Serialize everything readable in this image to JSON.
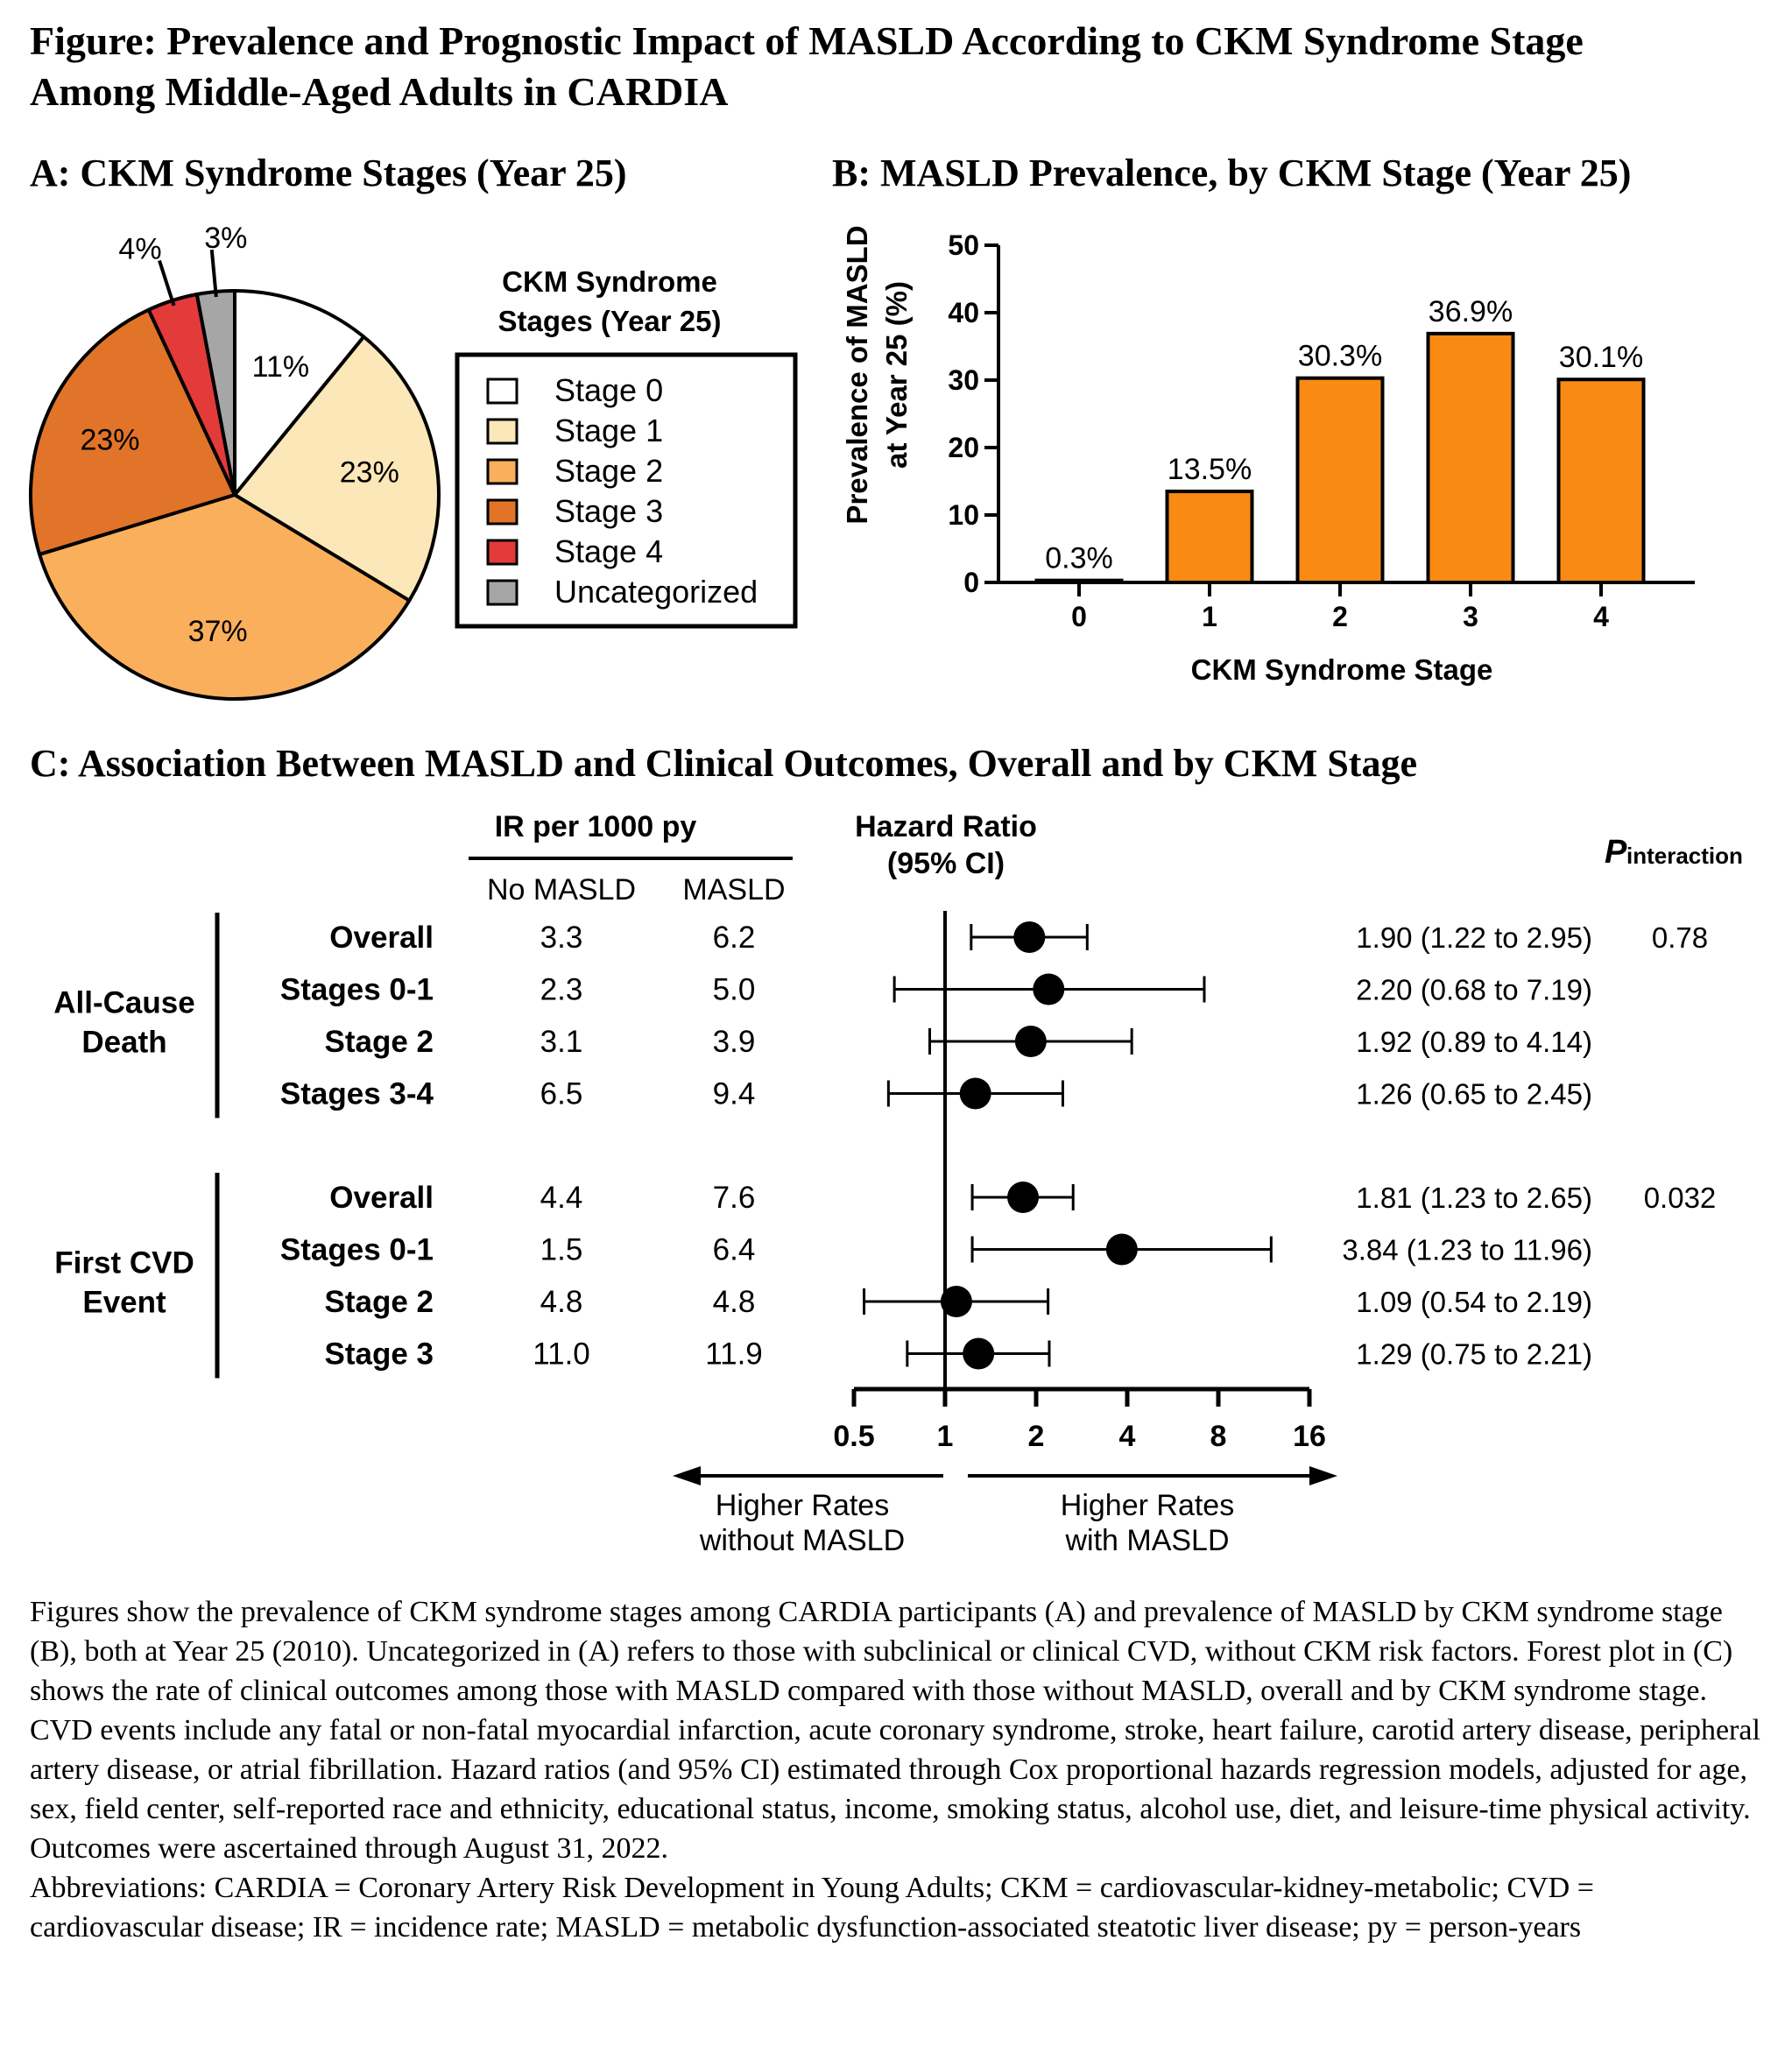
{
  "figure_title_line1": "Figure: Prevalence and Prognostic Impact of MASLD According to CKM Syndrome Stage",
  "figure_title_line2": "Among Middle-Aged Adults in CARDIA",
  "colors": {
    "stage0": "#ffffff",
    "stage1": "#fbe7b7",
    "stage2": "#f9af5c",
    "stage3": "#e17428",
    "stage4": "#e33a3a",
    "uncategorized": "#a6a6a6",
    "bar": "#f98a13"
  },
  "chart_data": [
    {
      "type": "pie",
      "title": "A: CKM Syndrome Stages (Year 25)",
      "legend_title_line1": "CKM Syndrome",
      "legend_title_line2": "Stages (Year 25)",
      "legend_position": "right",
      "slices": [
        {
          "label": "Stage 0",
          "value": 11,
          "text": "11%"
        },
        {
          "label": "Stage 1",
          "value": 23,
          "text": "23%"
        },
        {
          "label": "Stage 2",
          "value": 37,
          "text": "37%"
        },
        {
          "label": "Stage 3",
          "value": 23,
          "text": "23%"
        },
        {
          "label": "Stage 4",
          "value": 4,
          "text": "4%"
        },
        {
          "label": "Uncategorized",
          "value": 3,
          "text": "3%"
        }
      ]
    },
    {
      "type": "bar",
      "title": "B: MASLD Prevalence, by CKM Stage (Year 25)",
      "xlabel": "CKM Syndrome Stage",
      "ylabel_line1": "Prevalence of MASLD",
      "ylabel_line2": "at Year 25 (%)",
      "categories": [
        "0",
        "1",
        "2",
        "3",
        "4"
      ],
      "values": [
        0.3,
        13.5,
        30.3,
        36.9,
        30.1
      ],
      "value_labels": [
        "0.3%",
        "13.5%",
        "30.3%",
        "36.9%",
        "30.1%"
      ],
      "ylim": [
        0,
        50
      ],
      "yticks": [
        "0",
        "10",
        "20",
        "30",
        "40",
        "50"
      ]
    },
    {
      "type": "forest",
      "title": "C: Association Between MASLD and Clinical Outcomes, Overall and by CKM Stage",
      "ir_header": "IR per 1000 py",
      "col_no_masld": "No MASLD",
      "col_masld": "MASLD",
      "hr_header_line1": "Hazard Ratio",
      "hr_header_line2": "(95% CI)",
      "p_header_main": "P",
      "p_header_sub": "interaction",
      "x_scale": "log2",
      "xlim": [
        0.5,
        16
      ],
      "xticks": [
        "0.5",
        "1",
        "2",
        "4",
        "8",
        "16"
      ],
      "reference_line": 1,
      "arrow_left_line1": "Higher Rates",
      "arrow_left_line2": "without MASLD",
      "arrow_right_line1": "Higher Rates",
      "arrow_right_line2": "with MASLD",
      "groups": [
        {
          "name_line1": "All-Cause",
          "name_line2": "Death",
          "rows": [
            {
              "label": "Overall",
              "ir_no": "3.3",
              "ir_yes": "6.2",
              "hr": 1.9,
              "lo": 1.22,
              "hi": 2.95,
              "hr_text": "1.90 (1.22 to 2.95)",
              "p": "0.78"
            },
            {
              "label": "Stages 0-1",
              "ir_no": "2.3",
              "ir_yes": "5.0",
              "hr": 2.2,
              "lo": 0.68,
              "hi": 7.19,
              "hr_text": "2.20 (0.68 to 7.19)",
              "p": ""
            },
            {
              "label": "Stage 2",
              "ir_no": "3.1",
              "ir_yes": "3.9",
              "hr": 1.92,
              "lo": 0.89,
              "hi": 4.14,
              "hr_text": "1.92 (0.89 to 4.14)",
              "p": ""
            },
            {
              "label": "Stages 3-4",
              "ir_no": "6.5",
              "ir_yes": "9.4",
              "hr": 1.26,
              "lo": 0.65,
              "hi": 2.45,
              "hr_text": "1.26 (0.65 to 2.45)",
              "p": ""
            }
          ]
        },
        {
          "name_line1": "First CVD",
          "name_line2": "Event",
          "rows": [
            {
              "label": "Overall",
              "ir_no": "4.4",
              "ir_yes": "7.6",
              "hr": 1.81,
              "lo": 1.23,
              "hi": 2.65,
              "hr_text": "1.81 (1.23 to 2.65)",
              "p": "0.032"
            },
            {
              "label": "Stages 0-1",
              "ir_no": "1.5",
              "ir_yes": "6.4",
              "hr": 3.84,
              "lo": 1.23,
              "hi": 11.96,
              "hr_text": "3.84 (1.23 to 11.96)",
              "p": ""
            },
            {
              "label": "Stage 2",
              "ir_no": "4.8",
              "ir_yes": "4.8",
              "hr": 1.09,
              "lo": 0.54,
              "hi": 2.19,
              "hr_text": "1.09 (0.54 to 2.19)",
              "p": ""
            },
            {
              "label": "Stage 3",
              "ir_no": "11.0",
              "ir_yes": "11.9",
              "hr": 1.29,
              "lo": 0.75,
              "hi": 2.21,
              "hr_text": "1.29 (0.75 to 2.21)",
              "p": ""
            }
          ]
        }
      ]
    }
  ],
  "caption": {
    "paragraph1": "Figures show the prevalence of CKM syndrome stages among CARDIA participants (A) and prevalence of MASLD by CKM syndrome stage (B), both at Year 25 (2010). Uncategorized in (A) refers to those with subclinical or clinical CVD, without CKM risk factors. Forest plot in (C) shows the rate of clinical outcomes among those with MASLD compared with those without MASLD, overall and by CKM syndrome stage. CVD events include any fatal or non-fatal myocardial infarction, acute coronary syndrome, stroke, heart failure, carotid artery disease, peripheral artery disease, or atrial fibrillation. Hazard ratios (and 95% CI) estimated through Cox proportional hazards regression models, adjusted for age, sex, field center, self-reported race and ethnicity, educational status, income, smoking status, alcohol use, diet, and leisure-time physical activity. Outcomes were ascertained through August 31, 2022.",
    "paragraph2": "Abbreviations: CARDIA = Coronary Artery Risk Development in Young Adults; CKM = cardiovascular-kidney-metabolic; CVD = cardiovascular disease; IR = incidence rate; MASLD = metabolic dysfunction-associated steatotic liver disease; py = person-years"
  }
}
